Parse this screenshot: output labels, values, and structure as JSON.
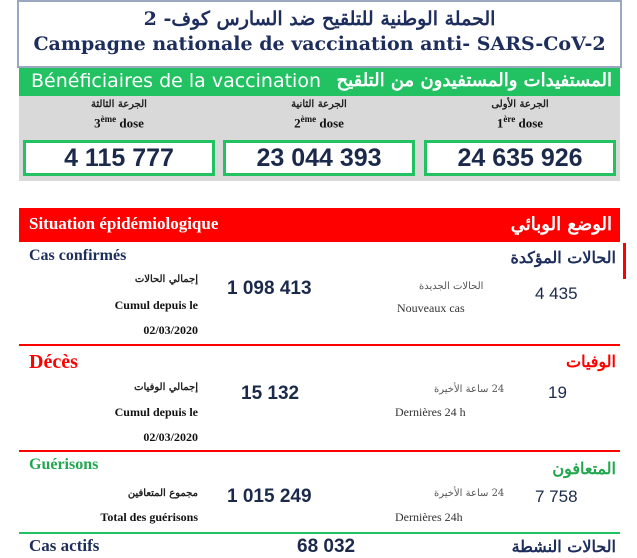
{
  "header": {
    "title_ar": "الحملة الوطنية للتلقيح ضد السارس كوف- 2",
    "title_fr": "Campagne nationale de vaccination anti- SARS-CoV-2"
  },
  "vaccination": {
    "label_fr": "Bénéficiaires de la vaccination",
    "label_ar": "المستفيدات والمستفيدون من التلقيح",
    "doses": [
      {
        "label_ar": "الجرعة الثالثة",
        "ordinal": "3",
        "ordinal_sup": "ème",
        "label_fr": "dose",
        "value": "4 115 777"
      },
      {
        "label_ar": "الجرعة الثانية",
        "ordinal": "2",
        "ordinal_sup": "ème",
        "label_fr": "dose",
        "value": "23 044 393"
      },
      {
        "label_ar": "الجرعة الأولى",
        "ordinal": "1",
        "ordinal_sup": "ère",
        "label_fr": "dose",
        "value": "24 635 926"
      }
    ],
    "accent_color": "#22c162"
  },
  "epidemiology": {
    "label_fr": "Situation épidémiologique",
    "label_ar": "الوضع الوبائي",
    "accent_color": "#ff0000",
    "confirmed": {
      "title_fr": "Cas confirmés",
      "title_ar": "الحالات المؤكدة",
      "cum_label_ar": "إجمالي الحالات",
      "cum_label_fr": "Cumul depuis le",
      "cum_date": "02/03/2020",
      "total": "1 098 413",
      "new_label_ar": "الحالات الجديدة",
      "new_label_fr": "Nouveaux cas",
      "new_value": "4 435"
    },
    "deaths": {
      "title_fr": "Décès",
      "title_ar": "الوفيات",
      "cum_label_ar": "إجمالي الوفيات",
      "cum_label_fr": "Cumul depuis le",
      "cum_date": "02/03/2020",
      "total": "15 132",
      "new_label_ar": "24 ساعة الأخيرة",
      "new_label_fr": "Dernières 24 h",
      "new_value": "19"
    },
    "recovered": {
      "title_fr": "Guérisons",
      "title_ar": "المتعافون",
      "cum_label_ar": "مجموع المتعافين",
      "cum_label_fr": "Total des guérisons",
      "total": "1 015 249",
      "new_label_ar": "24 ساعة الأخيرة",
      "new_label_fr": "Dernières 24h",
      "new_value": "7 758"
    },
    "active": {
      "title_fr": "Cas actifs",
      "title_ar": "الحالات النشطة",
      "total": "68 032"
    }
  }
}
